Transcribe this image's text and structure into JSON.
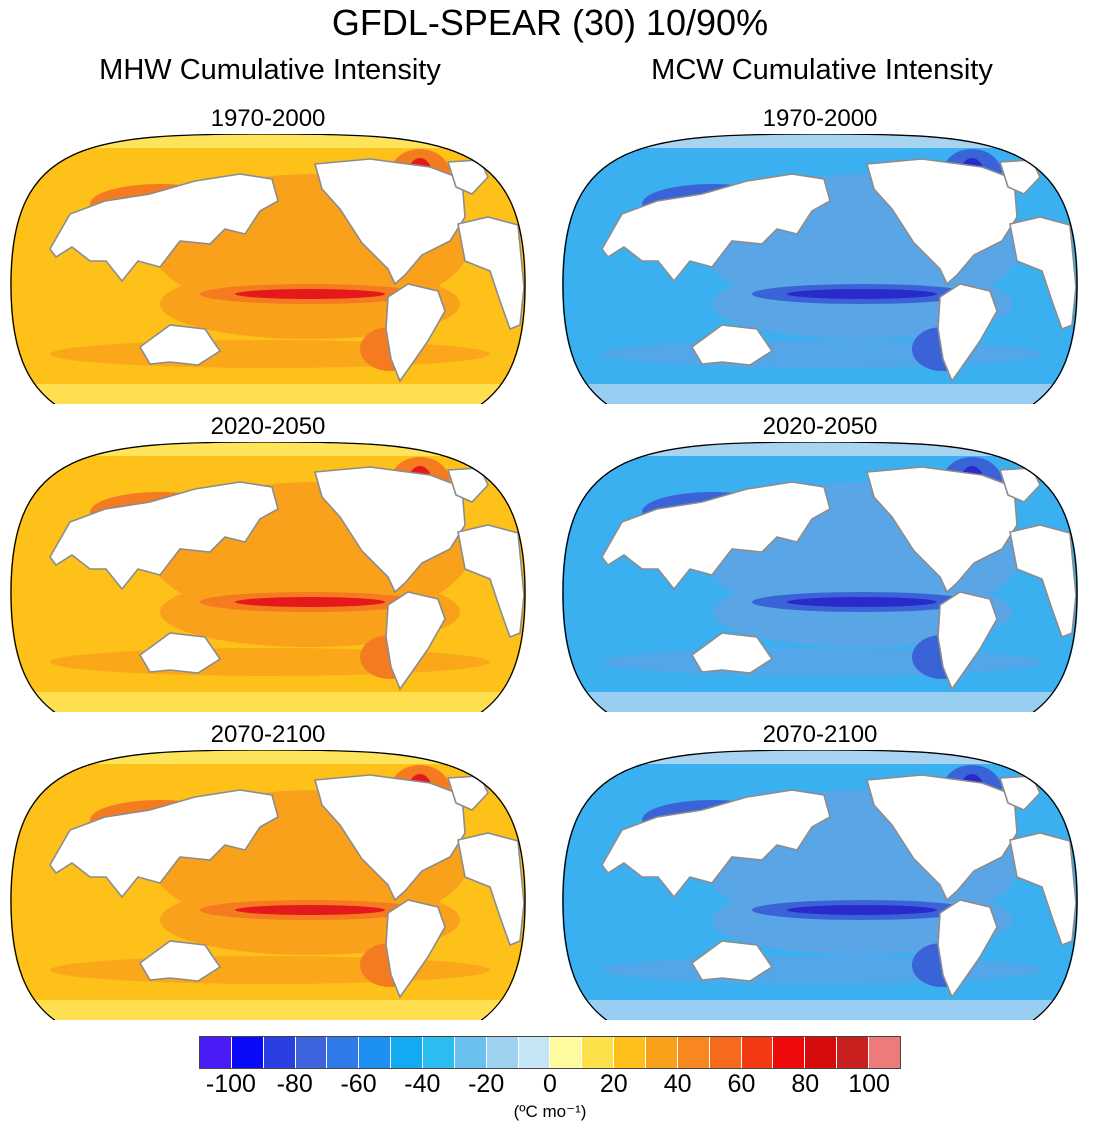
{
  "title": "GFDL-SPEAR (30) 10/90%",
  "columns": [
    {
      "title": "MHW Cumulative Intensity",
      "scheme": "warm",
      "panels": [
        {
          "label": "1970-2000"
        },
        {
          "label": "2020-2050"
        },
        {
          "label": "2070-2100"
        }
      ]
    },
    {
      "title": "MCW Cumulative Intensity",
      "scheme": "cool",
      "panels": [
        {
          "label": "1970-2000"
        },
        {
          "label": "2020-2050"
        },
        {
          "label": "2070-2100"
        }
      ]
    }
  ],
  "colors": {
    "warm_bg": "#fdc11a",
    "warm_mid": "#f9a11a",
    "warm_high": "#f57b20",
    "warm_peak": "#e5191c",
    "warm_pale": "#fde45a",
    "cool_bg": "#3bb0f0",
    "cool_mid": "#5aa5e6",
    "cool_deep": "#3a63d8",
    "cool_peak": "#2a2acc",
    "cool_pale": "#a8d4f2",
    "land": "#ffffff",
    "coast": "#8c8c8c"
  },
  "colorbar": {
    "colors": [
      "#4a1bf5",
      "#0a0afa",
      "#2a3ee4",
      "#3d64dc",
      "#2f7ae8",
      "#1e90f4",
      "#14aaf2",
      "#2bbdf0",
      "#6ac0ee",
      "#9fd1f0",
      "#c5e6f5",
      "#fefaa0",
      "#fde14a",
      "#fdc11a",
      "#f9a11a",
      "#f7871e",
      "#f56a1c",
      "#f43a12",
      "#ee0a0a",
      "#d60c0c",
      "#c81f1f",
      "#ee7a7a"
    ],
    "tick_labels": [
      "-100",
      "-80",
      "-60",
      "-40",
      "-20",
      "0",
      "20",
      "40",
      "60",
      "80",
      "100"
    ],
    "tick_values": [
      -100,
      -80,
      -60,
      -40,
      -20,
      0,
      20,
      40,
      60,
      80,
      100
    ],
    "range": [
      -110,
      110
    ],
    "units": "(ºC mo⁻¹)"
  }
}
